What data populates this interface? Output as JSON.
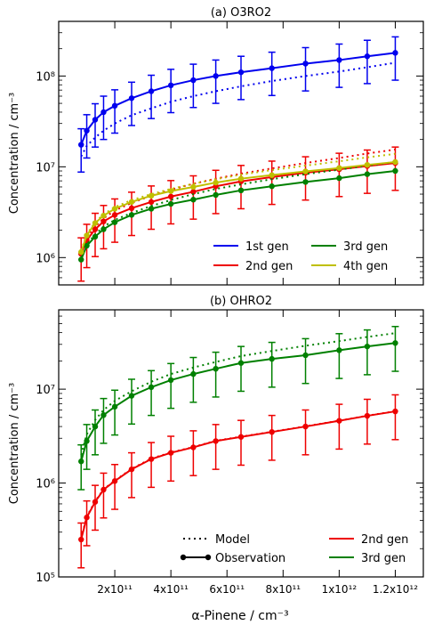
{
  "xlabel": "α-Pinene / cm⁻³",
  "x_ticks": [
    {
      "value": 200000000000.0,
      "label": "2x10¹¹"
    },
    {
      "value": 400000000000.0,
      "label": "4x10¹¹"
    },
    {
      "value": 600000000000.0,
      "label": "6x10¹¹"
    },
    {
      "value": 800000000000.0,
      "label": "8x10¹¹"
    },
    {
      "value": 1000000000000.0,
      "label": "1x10¹²"
    },
    {
      "value": 1200000000000.0,
      "label": "1.2x10¹²"
    }
  ],
  "colors": {
    "blue": "#0000ee",
    "red": "#ee0000",
    "green": "#008000",
    "yellow": "#bfbf00"
  },
  "chart_data": [
    {
      "type": "line",
      "title": "(a) O3RO2",
      "ylabel": "Concentration / cm⁻³",
      "yscale": "log",
      "xlim": [
        0,
        1300000000000.0
      ],
      "ylim": [
        500000,
        400000000
      ],
      "y_ticks": [
        {
          "value": 1000000,
          "label": "10⁶"
        },
        {
          "value": 10000000,
          "label": "10⁷"
        },
        {
          "value": 100000000,
          "label": "10⁸"
        }
      ],
      "x": [
        80000000000.0,
        100000000000.0,
        130000000000.0,
        160000000000.0,
        200000000000.0,
        260000000000.0,
        330000000000.0,
        400000000000.0,
        480000000000.0,
        560000000000.0,
        650000000000.0,
        760000000000.0,
        880000000000.0,
        1000000000000.0,
        1100000000000.0,
        1200000000000.0
      ],
      "series": [
        {
          "name": "1st gen",
          "color": "#0000ee",
          "observation": [
            17500000,
            25000000,
            33000000,
            40000000,
            47000000,
            57000000,
            68000000,
            79000000,
            90000000,
            100000000,
            110000000,
            122000000,
            137000000,
            150000000,
            165000000,
            180000000
          ],
          "error": [
            0.5,
            0.5,
            0.5,
            0.5,
            0.5,
            0.5,
            0.5,
            0.5,
            0.5,
            0.5,
            0.5,
            0.5,
            0.5,
            0.5,
            0.5,
            0.5
          ],
          "model": [
            13000000,
            17000000,
            21000000,
            25000000,
            30000000,
            37000000,
            44000000,
            52000000,
            60000000,
            68000000,
            77000000,
            88000000,
            100000000,
            112000000,
            125000000,
            140000000
          ]
        },
        {
          "name": "2nd gen",
          "color": "#ee0000",
          "observation": [
            1100000,
            1550000,
            2050000,
            2500000,
            2950000,
            3500000,
            4100000,
            4700000,
            5300000,
            6100000,
            6900000,
            7700000,
            8600000,
            9400000,
            10200000,
            11000000
          ],
          "error": [
            0.5,
            0.5,
            0.5,
            0.5,
            0.5,
            0.5,
            0.5,
            0.5,
            0.5,
            0.5,
            0.5,
            0.5,
            0.5,
            0.5,
            0.5,
            0.5
          ],
          "model": [
            1150000,
            1650000,
            2200000,
            2700000,
            3300000,
            4000000,
            4800000,
            5600000,
            6500000,
            7400000,
            8400000,
            9600000,
            11000000,
            12500000,
            14000000,
            15500000
          ]
        },
        {
          "name": "3rd gen",
          "color": "#008000",
          "observation": [
            950000,
            1350000,
            1700000,
            2050000,
            2450000,
            2950000,
            3450000,
            3900000,
            4350000,
            4900000,
            5500000,
            6100000,
            6800000,
            7500000,
            8300000,
            9000000
          ],
          "model": [
            1000000,
            1400000,
            1800000,
            2200000,
            2600000,
            3100000,
            3700000,
            4300000,
            5000000,
            5700000,
            6400000,
            7300000,
            8300000,
            9300000,
            10300000,
            11300000
          ]
        },
        {
          "name": "4th gen",
          "color": "#bfbf00",
          "observation": [
            1150000,
            1750000,
            2400000,
            2900000,
            3450000,
            4100000,
            4800000,
            5400000,
            6000000,
            6700000,
            7400000,
            8100000,
            8900000,
            9700000,
            10500000,
            11300000
          ],
          "model": [
            1200000,
            1800000,
            2450000,
            3000000,
            3600000,
            4300000,
            5000000,
            5700000,
            6500000,
            7300000,
            8200000,
            9200000,
            10300000,
            11500000,
            12700000,
            13900000
          ]
        }
      ],
      "legend_location": "lower-right"
    },
    {
      "type": "line",
      "title": "(b) OHRO2",
      "ylabel": "Concentration / cm⁻³",
      "yscale": "log",
      "xlim": [
        0,
        1300000000000.0
      ],
      "ylim": [
        100000,
        70000000
      ],
      "y_ticks": [
        {
          "value": 100000,
          "label": "10⁵"
        },
        {
          "value": 1000000,
          "label": "10⁶"
        },
        {
          "value": 10000000,
          "label": "10⁷"
        }
      ],
      "x": [
        80000000000.0,
        100000000000.0,
        130000000000.0,
        160000000000.0,
        200000000000.0,
        260000000000.0,
        330000000000.0,
        400000000000.0,
        480000000000.0,
        560000000000.0,
        650000000000.0,
        760000000000.0,
        880000000000.0,
        1000000000000.0,
        1100000000000.0,
        1200000000000.0
      ],
      "series": [
        {
          "name": "2nd gen",
          "color": "#ee0000",
          "observation": [
            250000,
            430000,
            630000,
            850000,
            1050000,
            1400000,
            1800000,
            2100000,
            2400000,
            2800000,
            3100000,
            3500000,
            4000000,
            4600000,
            5200000,
            5800000
          ],
          "error": [
            0.5,
            0.5,
            0.5,
            0.5,
            0.5,
            0.5,
            0.5,
            0.5,
            0.5,
            0.5,
            0.5,
            0.5,
            0.5,
            0.5,
            0.5,
            0.5
          ],
          "model": [
            260000,
            440000,
            640000,
            860000,
            1060000,
            1420000,
            1820000,
            2120000,
            2420000,
            2820000,
            3120000,
            3520000,
            4020000,
            4620000,
            5220000,
            5820000
          ]
        },
        {
          "name": "3rd gen",
          "color": "#008000",
          "observation": [
            1700000,
            2800000,
            4000000,
            5300000,
            6500000,
            8500000,
            10500000,
            12500000,
            14500000,
            16500000,
            19000000,
            21000000,
            23000000,
            26000000,
            28500000,
            31000000
          ],
          "error": [
            0.5,
            0.5,
            0.5,
            0.5,
            0.5,
            0.5,
            0.5,
            0.5,
            0.5,
            0.5,
            0.5,
            0.5,
            0.5,
            0.5,
            0.5,
            0.5
          ],
          "model": [
            2000000,
            3300000,
            4700000,
            6000000,
            7500000,
            9500000,
            12000000,
            14500000,
            17000000,
            19500000,
            22500000,
            25500000,
            29000000,
            32500000,
            36000000,
            39500000
          ]
        }
      ],
      "legend_location": "lower-right"
    }
  ],
  "legend_b_styles": [
    {
      "label": "Model",
      "style": "dotted"
    },
    {
      "label": "Observation",
      "style": "solid-marker"
    }
  ]
}
